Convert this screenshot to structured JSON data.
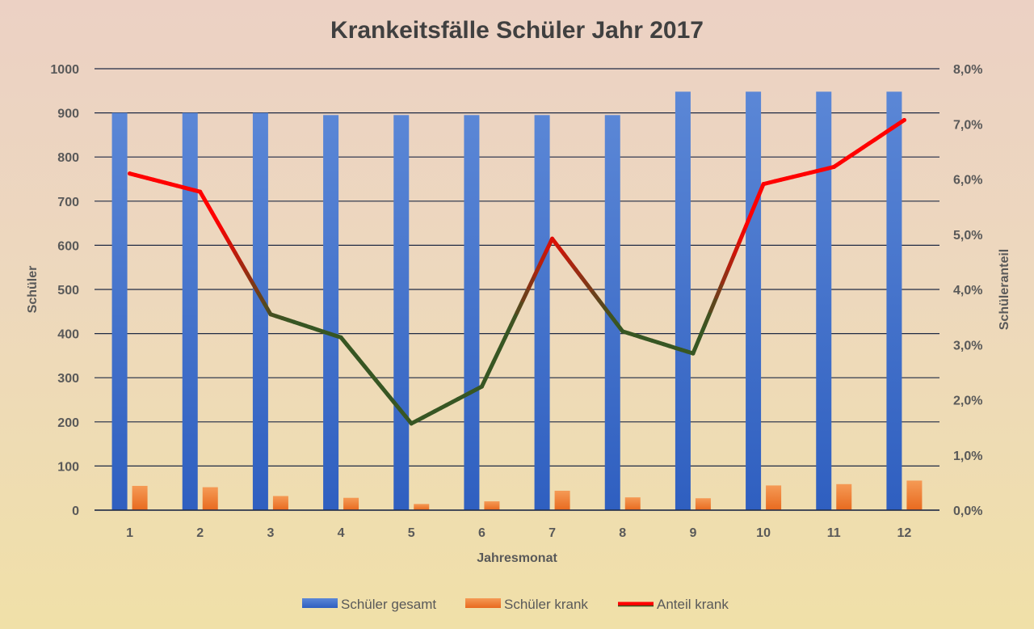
{
  "chart_data": {
    "type": "bar",
    "title": "Krankeitsfälle Schüler Jahr 2017",
    "xlabel": "Jahresmonat",
    "ylabel": "Schüler",
    "y2label": "Schüleranteil",
    "categories": [
      "1",
      "2",
      "3",
      "4",
      "5",
      "6",
      "7",
      "8",
      "9",
      "10",
      "11",
      "12"
    ],
    "ylim": [
      0,
      1000
    ],
    "yticks": [
      "0",
      "100",
      "200",
      "300",
      "400",
      "500",
      "600",
      "700",
      "800",
      "900",
      "1000"
    ],
    "y2lim": [
      0,
      0.08
    ],
    "y2ticks": [
      "0,0%",
      "1,0%",
      "2,0%",
      "3,0%",
      "4,0%",
      "5,0%",
      "6,0%",
      "7,0%",
      "8,0%"
    ],
    "grid": true,
    "legend_position": "bottom",
    "series": [
      {
        "name": "Schüler gesamt",
        "type": "bar",
        "axis": "left",
        "color": "#4472c4",
        "values": [
          900,
          900,
          900,
          895,
          895,
          895,
          895,
          895,
          948,
          948,
          948,
          948
        ]
      },
      {
        "name": "Schüler krank",
        "type": "bar",
        "axis": "left",
        "color": "#ed7d31",
        "values": [
          55,
          52,
          32,
          28,
          14,
          20,
          44,
          29,
          27,
          56,
          59,
          67
        ]
      },
      {
        "name": "Anteil krank",
        "type": "line",
        "axis": "right",
        "color": "#ff0000",
        "color_low": "#375623",
        "values": [
          0.061,
          0.0577,
          0.0355,
          0.0313,
          0.0157,
          0.0224,
          0.0492,
          0.0324,
          0.0284,
          0.0591,
          0.0622,
          0.0707
        ]
      }
    ]
  }
}
